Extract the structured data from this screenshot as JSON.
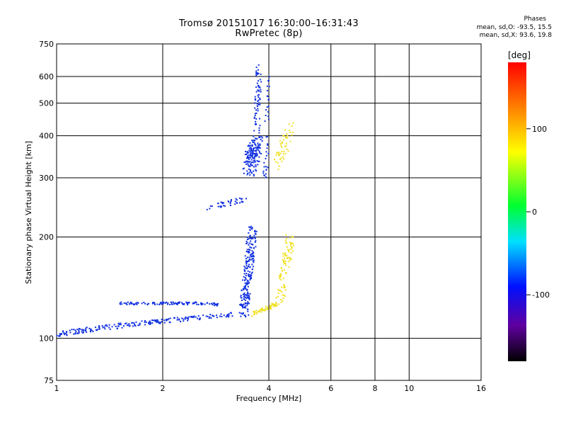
{
  "chart_data": {
    "type": "scatter",
    "title": "Tromsø 20151017 16:30:00–16:31:43",
    "subtitle": "RwPretec (8p)",
    "xlabel": "Frequency [MHz]",
    "ylabel": "Stationary phase Virtual Height [km]",
    "x_scale": "log",
    "y_scale": "log",
    "xlim": [
      1,
      16
    ],
    "ylim": [
      75,
      750
    ],
    "x_ticks": [
      1,
      2,
      4,
      6,
      8,
      10,
      16
    ],
    "x_tick_labels": [
      "1",
      "2",
      "4",
      "6",
      "8",
      "10",
      "16"
    ],
    "y_ticks": [
      75,
      100,
      200,
      300,
      400,
      500,
      600,
      750
    ],
    "y_tick_labels": [
      "75",
      "100",
      "200",
      "300",
      "400",
      "500",
      "600",
      "750"
    ],
    "grid": true,
    "stats": {
      "heading": "Phases",
      "line_o": "mean, sd,O: -93.5, 15.5",
      "line_x": "mean, sd,X:  93.6, 19.8"
    },
    "colorbar": {
      "label": "[deg]",
      "range": [
        -180,
        180
      ],
      "ticks": [
        100,
        0,
        -100
      ],
      "tick_labels": [
        "100",
        "0",
        "-100"
      ],
      "colormap": "rainbow (black-purple-blue-cyan-green-yellow-orange-red)"
    },
    "series": [
      {
        "name": "O-mode",
        "phase": -93.5,
        "color": "#1030e0",
        "traces": [
          {
            "from": [
              1.0,
              103
            ],
            "to": [
              1.6,
              110
            ],
            "spread": 0.012,
            "count": 90
          },
          {
            "from": [
              1.6,
              110
            ],
            "to": [
              3.2,
              118
            ],
            "spread": 0.01,
            "count": 120
          },
          {
            "from": [
              1.5,
              127
            ],
            "to": [
              2.5,
              127
            ],
            "spread": 0.006,
            "count": 90
          },
          {
            "from": [
              2.5,
              127
            ],
            "to": [
              2.9,
              126
            ],
            "spread": 0.006,
            "count": 25
          },
          {
            "from": [
              3.4,
              120
            ],
            "to": [
              3.6,
              210
            ],
            "spread": 0.03,
            "count": 220
          },
          {
            "from": [
              3.5,
              320
            ],
            "to": [
              3.7,
              380
            ],
            "spread": 0.04,
            "count": 160
          },
          {
            "from": [
              3.7,
              400
            ],
            "to": [
              3.75,
              650
            ],
            "spread": 0.02,
            "count": 70
          },
          {
            "from": [
              2.7,
              245
            ],
            "to": [
              3.5,
              260
            ],
            "spread": 0.012,
            "count": 40
          },
          {
            "from": [
              3.9,
              290
            ],
            "to": [
              4.0,
              600
            ],
            "spread": 0.015,
            "count": 40
          }
        ]
      },
      {
        "name": "X-mode",
        "phase": 93.6,
        "color": "#f0e020",
        "traces": [
          {
            "from": [
              3.6,
              118
            ],
            "to": [
              4.3,
              128
            ],
            "spread": 0.01,
            "count": 60
          },
          {
            "from": [
              4.3,
              128
            ],
            "to": [
              4.6,
              200
            ],
            "spread": 0.03,
            "count": 90
          },
          {
            "from": [
              4.2,
              330
            ],
            "to": [
              4.6,
              420
            ],
            "spread": 0.03,
            "count": 50
          }
        ]
      }
    ]
  }
}
